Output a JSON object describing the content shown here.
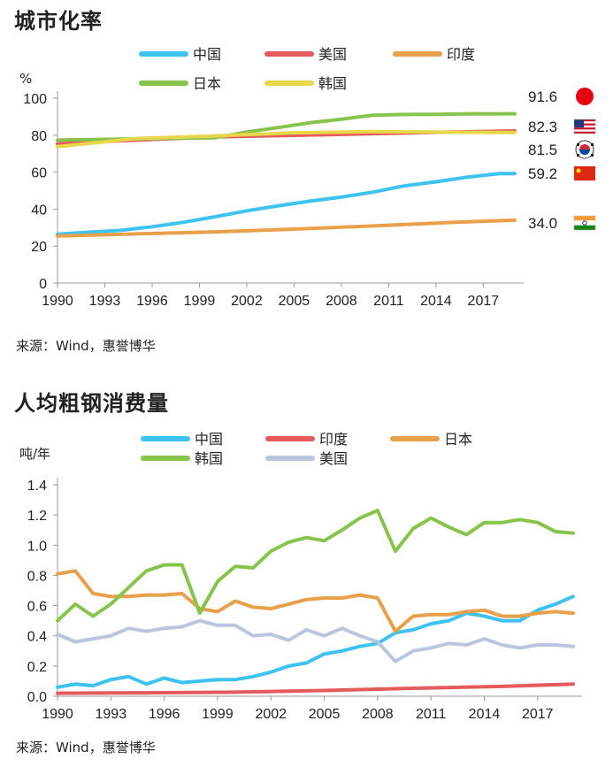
{
  "charts": [
    {
      "title": "城市化率",
      "source": "来源：Wind，惠誉博华",
      "unit": "%"
    },
    {
      "title": "人均粗钢消费量",
      "source": "来源：Wind，惠誉博华",
      "unit": "吨/年"
    }
  ],
  "chart_data": [
    {
      "type": "line",
      "title": "城市化率",
      "ylabel": "%",
      "ylim": [
        0,
        100
      ],
      "yticks": [
        0,
        20,
        40,
        60,
        80,
        100
      ],
      "xlim": [
        1990,
        2019
      ],
      "xticks": [
        1990,
        1993,
        1996,
        1999,
        2002,
        2005,
        2008,
        2011,
        2014,
        2017
      ],
      "grid": false,
      "legend_position": "top",
      "series": [
        {
          "name": "中国",
          "color": "#3ec3f0",
          "x": [
            1990,
            1992,
            1994,
            1996,
            1998,
            2000,
            2002,
            2004,
            2006,
            2008,
            2010,
            2012,
            2014,
            2016,
            2018,
            2019
          ],
          "values": [
            26.4,
            27.5,
            28.5,
            30.5,
            32.9,
            35.9,
            39.1,
            41.8,
            44.3,
            46.5,
            49.2,
            52.6,
            54.8,
            57.3,
            59.2,
            59.2
          ]
        },
        {
          "name": "美国",
          "color": "#e55b5b",
          "x": [
            1990,
            1995,
            2000,
            2005,
            2010,
            2015,
            2019
          ],
          "values": [
            75.3,
            77.3,
            79.1,
            79.9,
            80.8,
            81.7,
            82.3
          ]
        },
        {
          "name": "印度",
          "color": "#e8a14a",
          "x": [
            1990,
            1995,
            2000,
            2005,
            2010,
            2015,
            2019
          ],
          "values": [
            25.5,
            26.6,
            27.7,
            29.2,
            30.9,
            32.8,
            34.0
          ]
        },
        {
          "name": "日本",
          "color": "#86c44c",
          "x": [
            1990,
            1995,
            2000,
            2002,
            2004,
            2006,
            2008,
            2010,
            2012,
            2014,
            2016,
            2019
          ],
          "values": [
            77.3,
            78.0,
            78.6,
            81.7,
            84.1,
            86.7,
            88.6,
            90.8,
            91.2,
            91.3,
            91.5,
            91.6
          ]
        },
        {
          "name": "韩国",
          "color": "#ead64a",
          "x": [
            1990,
            1995,
            2000,
            2005,
            2010,
            2015,
            2019
          ],
          "values": [
            73.8,
            78.2,
            79.6,
            81.3,
            81.9,
            81.6,
            81.5
          ]
        }
      ],
      "end_labels": [
        {
          "value": "91.6",
          "flag": "japan"
        },
        {
          "value": "82.3",
          "flag": "usa"
        },
        {
          "value": "81.5",
          "flag": "korea"
        },
        {
          "value": "59.2",
          "flag": "china"
        },
        {
          "value": "34.0",
          "flag": "india"
        }
      ]
    },
    {
      "type": "line",
      "title": "人均粗钢消费量",
      "ylabel": "吨/年",
      "ylim": [
        0,
        1.4
      ],
      "yticks": [
        "0.0",
        "0.2",
        "0.4",
        "0.6",
        "0.8",
        "1.0",
        "1.2",
        "1.4"
      ],
      "xlim": [
        1990,
        2019
      ],
      "xticks": [
        1990,
        1993,
        1996,
        1999,
        2002,
        2005,
        2008,
        2011,
        2014,
        2017
      ],
      "grid": false,
      "legend_position": "top",
      "series": [
        {
          "name": "中国",
          "color": "#3ec3f0",
          "x": [
            1990,
            1991,
            1992,
            1993,
            1994,
            1995,
            1996,
            1997,
            1998,
            1999,
            2000,
            2001,
            2002,
            2003,
            2004,
            2005,
            2006,
            2007,
            2008,
            2009,
            2010,
            2011,
            2012,
            2013,
            2014,
            2015,
            2016,
            2017,
            2018,
            2019
          ],
          "values": [
            0.06,
            0.08,
            0.07,
            0.11,
            0.13,
            0.08,
            0.12,
            0.09,
            0.1,
            0.11,
            0.11,
            0.13,
            0.16,
            0.2,
            0.22,
            0.28,
            0.3,
            0.33,
            0.35,
            0.42,
            0.44,
            0.48,
            0.5,
            0.55,
            0.53,
            0.5,
            0.5,
            0.57,
            0.61,
            0.66
          ]
        },
        {
          "name": "印度",
          "color": "#e55b5b",
          "x": [
            1990,
            1995,
            2000,
            2005,
            2010,
            2015,
            2019
          ],
          "values": [
            0.02,
            0.023,
            0.027,
            0.038,
            0.053,
            0.065,
            0.08
          ]
        },
        {
          "name": "日本",
          "color": "#e8a14a",
          "x": [
            1990,
            1991,
            1992,
            1993,
            1994,
            1995,
            1996,
            1997,
            1998,
            1999,
            2000,
            2001,
            2002,
            2003,
            2004,
            2005,
            2006,
            2007,
            2008,
            2009,
            2010,
            2011,
            2012,
            2013,
            2014,
            2015,
            2016,
            2017,
            2018,
            2019
          ],
          "values": [
            0.81,
            0.83,
            0.68,
            0.66,
            0.66,
            0.67,
            0.67,
            0.68,
            0.58,
            0.56,
            0.63,
            0.59,
            0.58,
            0.61,
            0.64,
            0.65,
            0.65,
            0.67,
            0.65,
            0.43,
            0.53,
            0.54,
            0.54,
            0.56,
            0.57,
            0.53,
            0.53,
            0.55,
            0.56,
            0.55
          ]
        },
        {
          "name": "韩国",
          "color": "#86c44c",
          "x": [
            1990,
            1991,
            1992,
            1993,
            1994,
            1995,
            1996,
            1997,
            1998,
            1999,
            2000,
            2001,
            2002,
            2003,
            2004,
            2005,
            2006,
            2007,
            2008,
            2009,
            2010,
            2011,
            2012,
            2013,
            2014,
            2015,
            2016,
            2017,
            2018,
            2019
          ],
          "values": [
            0.5,
            0.61,
            0.53,
            0.61,
            0.72,
            0.83,
            0.87,
            0.87,
            0.55,
            0.76,
            0.86,
            0.85,
            0.96,
            1.02,
            1.05,
            1.03,
            1.1,
            1.18,
            1.23,
            0.96,
            1.11,
            1.18,
            1.12,
            1.07,
            1.15,
            1.15,
            1.17,
            1.15,
            1.09,
            1.08
          ]
        },
        {
          "name": "美国",
          "color": "#bcc5df",
          "x": [
            1990,
            1991,
            1992,
            1993,
            1994,
            1995,
            1996,
            1997,
            1998,
            1999,
            2000,
            2001,
            2002,
            2003,
            2004,
            2005,
            2006,
            2007,
            2008,
            2009,
            2010,
            2011,
            2012,
            2013,
            2014,
            2015,
            2016,
            2017,
            2018,
            2019
          ],
          "values": [
            0.41,
            0.36,
            0.38,
            0.4,
            0.45,
            0.43,
            0.45,
            0.46,
            0.5,
            0.47,
            0.47,
            0.4,
            0.41,
            0.37,
            0.44,
            0.4,
            0.45,
            0.4,
            0.36,
            0.23,
            0.3,
            0.32,
            0.35,
            0.34,
            0.38,
            0.34,
            0.32,
            0.34,
            0.34,
            0.33
          ]
        }
      ]
    }
  ]
}
